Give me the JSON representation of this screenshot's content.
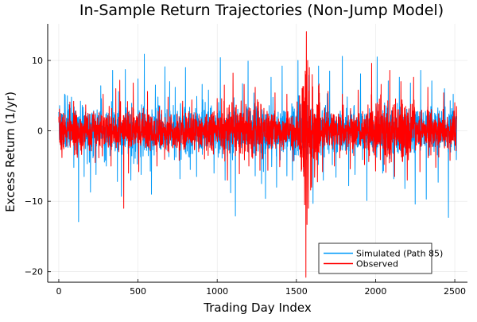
{
  "chart_data": {
    "type": "line",
    "title": "In-Sample Return Trajectories (Non-Jump Model)",
    "xlabel": "Trading Day Index",
    "ylabel": "Excess Return (1/yr)",
    "xlim": [
      -70,
      2580
    ],
    "ylim": [
      -21.5,
      15.2
    ],
    "xticks": [
      0,
      500,
      1000,
      1500,
      2000,
      2500
    ],
    "yticks": [
      -20,
      -10,
      0,
      10
    ],
    "ytick_labels": [
      "−20",
      "−10",
      "0",
      "10"
    ],
    "grid": true,
    "legend_position": "bottom-right",
    "n_points": 2513,
    "series": [
      {
        "name": "Simulated (Path 85)",
        "color": "#009af9",
        "spikes": [
          {
            "x": 5,
            "y": 3.6
          },
          {
            "x": 40,
            "y": 5.1
          },
          {
            "x": 80,
            "y": 4.8
          },
          {
            "x": 95,
            "y": -5.2
          },
          {
            "x": 125,
            "y": -12.9
          },
          {
            "x": 160,
            "y": -6.5
          },
          {
            "x": 200,
            "y": -8.7
          },
          {
            "x": 235,
            "y": -6.2
          },
          {
            "x": 265,
            "y": 6.4
          },
          {
            "x": 300,
            "y": -5.0
          },
          {
            "x": 340,
            "y": 8.6
          },
          {
            "x": 370,
            "y": -7.2
          },
          {
            "x": 395,
            "y": -9.3
          },
          {
            "x": 420,
            "y": 8.7
          },
          {
            "x": 455,
            "y": -7.0
          },
          {
            "x": 500,
            "y": 7.4
          },
          {
            "x": 520,
            "y": -6.2
          },
          {
            "x": 540,
            "y": 10.9
          },
          {
            "x": 585,
            "y": -9.0
          },
          {
            "x": 610,
            "y": 6.5
          },
          {
            "x": 670,
            "y": 9.1
          },
          {
            "x": 700,
            "y": 7.0
          },
          {
            "x": 735,
            "y": 6.2
          },
          {
            "x": 765,
            "y": -6.8
          },
          {
            "x": 800,
            "y": 9.0
          },
          {
            "x": 830,
            "y": -5.5
          },
          {
            "x": 870,
            "y": -6.5
          },
          {
            "x": 905,
            "y": 6.6
          },
          {
            "x": 945,
            "y": 5.8
          },
          {
            "x": 980,
            "y": -6.0
          },
          {
            "x": 1020,
            "y": 10.4
          },
          {
            "x": 1050,
            "y": -7.0
          },
          {
            "x": 1085,
            "y": -8.8
          },
          {
            "x": 1115,
            "y": -12.1
          },
          {
            "x": 1160,
            "y": 6.7
          },
          {
            "x": 1195,
            "y": 9.9
          },
          {
            "x": 1240,
            "y": -6.4
          },
          {
            "x": 1280,
            "y": -7.5
          },
          {
            "x": 1305,
            "y": -9.6
          },
          {
            "x": 1340,
            "y": 7.6
          },
          {
            "x": 1375,
            "y": -8.0
          },
          {
            "x": 1410,
            "y": 9.2
          },
          {
            "x": 1440,
            "y": -6.4
          },
          {
            "x": 1475,
            "y": -7.0
          },
          {
            "x": 1510,
            "y": 10.0
          },
          {
            "x": 1545,
            "y": -5.8
          },
          {
            "x": 1580,
            "y": 7.9
          },
          {
            "x": 1605,
            "y": -10.3
          },
          {
            "x": 1640,
            "y": 9.2
          },
          {
            "x": 1670,
            "y": -7.0
          },
          {
            "x": 1710,
            "y": 8.5
          },
          {
            "x": 1750,
            "y": -6.6
          },
          {
            "x": 1790,
            "y": 10.6
          },
          {
            "x": 1830,
            "y": -7.8
          },
          {
            "x": 1870,
            "y": -6.2
          },
          {
            "x": 1905,
            "y": 8.1
          },
          {
            "x": 1945,
            "y": -9.9
          },
          {
            "x": 1975,
            "y": 6.2
          },
          {
            "x": 2010,
            "y": 10.5
          },
          {
            "x": 2045,
            "y": -6.0
          },
          {
            "x": 2080,
            "y": 7.1
          },
          {
            "x": 2115,
            "y": -6.8
          },
          {
            "x": 2150,
            "y": 7.6
          },
          {
            "x": 2185,
            "y": -8.2
          },
          {
            "x": 2220,
            "y": 6.8
          },
          {
            "x": 2250,
            "y": -10.4
          },
          {
            "x": 2285,
            "y": 8.6
          },
          {
            "x": 2320,
            "y": -9.7
          },
          {
            "x": 2355,
            "y": 7.1
          },
          {
            "x": 2395,
            "y": -7.3
          },
          {
            "x": 2435,
            "y": 6.0
          },
          {
            "x": 2460,
            "y": -12.3
          },
          {
            "x": 2490,
            "y": 5.2
          },
          {
            "x": 2510,
            "y": -4.1
          }
        ]
      },
      {
        "name": "Observed",
        "color": "#ff0000",
        "spikes": [
          {
            "x": 20,
            "y": -3.8
          },
          {
            "x": 70,
            "y": 4.1
          },
          {
            "x": 110,
            "y": -3.3
          },
          {
            "x": 170,
            "y": 3.7
          },
          {
            "x": 230,
            "y": -4.5
          },
          {
            "x": 280,
            "y": 5.2
          },
          {
            "x": 330,
            "y": -5.0
          },
          {
            "x": 360,
            "y": 6.0
          },
          {
            "x": 385,
            "y": 7.2
          },
          {
            "x": 410,
            "y": -11.0
          },
          {
            "x": 440,
            "y": -6.0
          },
          {
            "x": 470,
            "y": 6.8
          },
          {
            "x": 505,
            "y": -5.8
          },
          {
            "x": 560,
            "y": 5.6
          },
          {
            "x": 620,
            "y": -5.0
          },
          {
            "x": 690,
            "y": 4.8
          },
          {
            "x": 760,
            "y": -4.2
          },
          {
            "x": 840,
            "y": 4.4
          },
          {
            "x": 920,
            "y": -4.0
          },
          {
            "x": 1000,
            "y": 4.6
          },
          {
            "x": 1045,
            "y": 6.5
          },
          {
            "x": 1065,
            "y": -7.0
          },
          {
            "x": 1100,
            "y": 8.2
          },
          {
            "x": 1140,
            "y": -6.1
          },
          {
            "x": 1170,
            "y": 6.6
          },
          {
            "x": 1200,
            "y": -5.0
          },
          {
            "x": 1240,
            "y": 6.2
          },
          {
            "x": 1270,
            "y": -5.6
          },
          {
            "x": 1320,
            "y": -5.6
          },
          {
            "x": 1365,
            "y": 5.4
          },
          {
            "x": 1395,
            "y": -5.1
          },
          {
            "x": 1440,
            "y": 5.2
          },
          {
            "x": 1480,
            "y": -4.3
          },
          {
            "x": 1520,
            "y": 5.0
          },
          {
            "x": 1545,
            "y": 6.3
          },
          {
            "x": 1552,
            "y": -10.5
          },
          {
            "x": 1556,
            "y": 8.5
          },
          {
            "x": 1560,
            "y": -20.8
          },
          {
            "x": 1563,
            "y": 14.1
          },
          {
            "x": 1567,
            "y": -13.3
          },
          {
            "x": 1571,
            "y": 10.0
          },
          {
            "x": 1576,
            "y": -11.0
          },
          {
            "x": 1582,
            "y": 9.0
          },
          {
            "x": 1590,
            "y": -8.4
          },
          {
            "x": 1600,
            "y": 8.0
          },
          {
            "x": 1615,
            "y": -6.6
          },
          {
            "x": 1640,
            "y": 6.4
          },
          {
            "x": 1665,
            "y": -5.8
          },
          {
            "x": 1700,
            "y": 5.6
          },
          {
            "x": 1740,
            "y": -5.0
          },
          {
            "x": 1790,
            "y": 5.2
          },
          {
            "x": 1840,
            "y": -5.4
          },
          {
            "x": 1890,
            "y": 5.8
          },
          {
            "x": 1930,
            "y": -4.8
          },
          {
            "x": 1975,
            "y": 9.6
          },
          {
            "x": 2000,
            "y": -5.7
          },
          {
            "x": 2035,
            "y": 6.6
          },
          {
            "x": 2065,
            "y": -5.9
          },
          {
            "x": 2090,
            "y": 8.6
          },
          {
            "x": 2120,
            "y": -6.5
          },
          {
            "x": 2160,
            "y": 7.0
          },
          {
            "x": 2200,
            "y": -7.0
          },
          {
            "x": 2240,
            "y": 7.6
          },
          {
            "x": 2280,
            "y": -5.8
          },
          {
            "x": 2330,
            "y": 6.2
          },
          {
            "x": 2380,
            "y": -5.2
          },
          {
            "x": 2430,
            "y": 5.4
          },
          {
            "x": 2470,
            "y": -4.2
          },
          {
            "x": 2500,
            "y": 4.0
          }
        ]
      }
    ]
  }
}
